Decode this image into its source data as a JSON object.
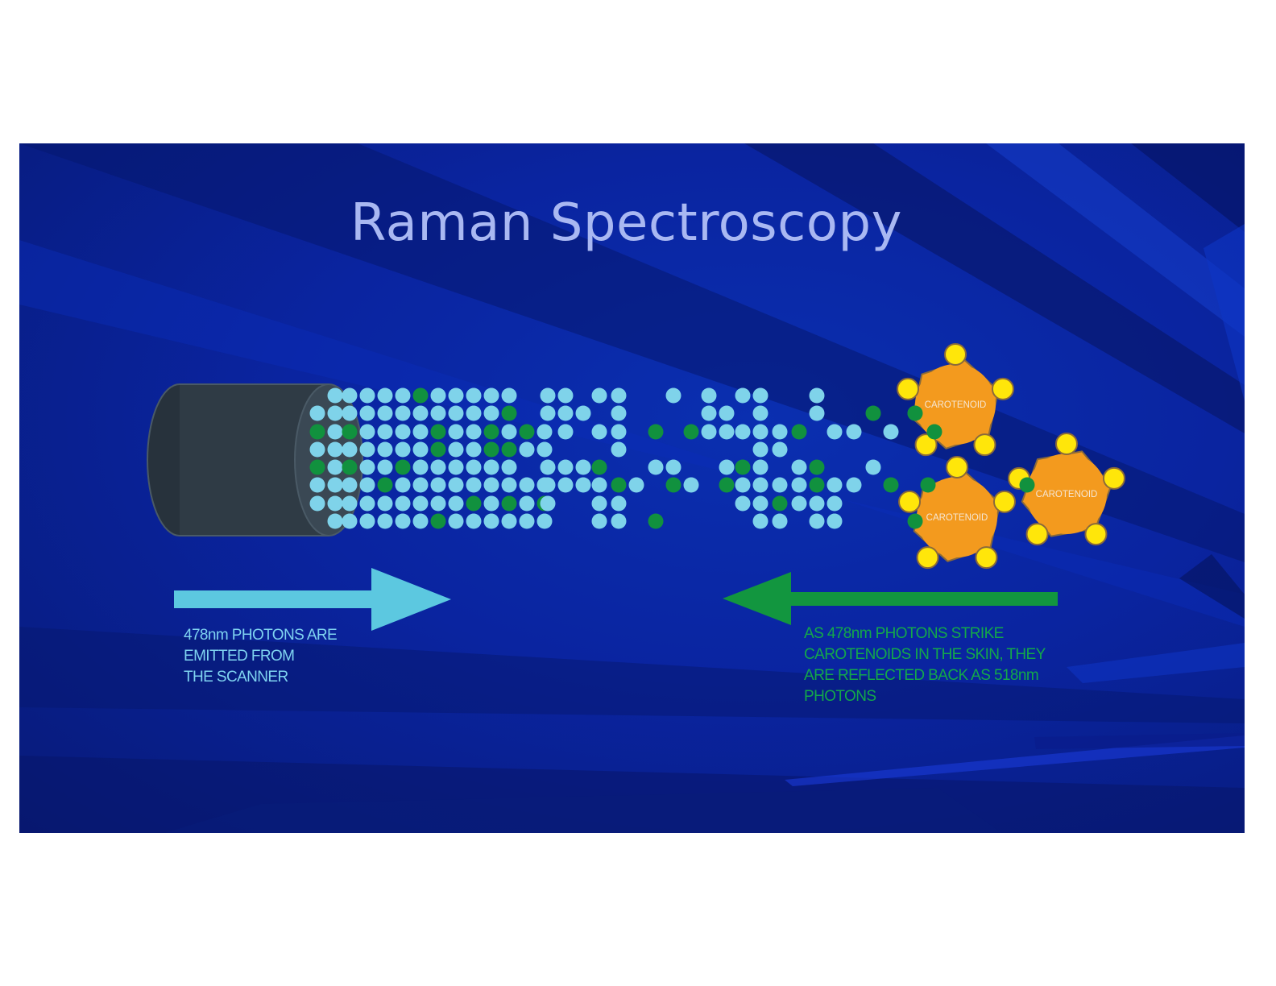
{
  "title": "Raman Spectroscopy",
  "molecules": {
    "label": "CAROTENOID",
    "count": 3
  },
  "captions": {
    "emitted": [
      "478nm PHOTONS ARE",
      "EMITTED FROM",
      "THE SCANNER"
    ],
    "reflected": [
      "AS 478nm PHOTONS STRIKE",
      "CAROTENOIDS IN THE SKIN,  THEY",
      "ARE REFLECTED BACK  AS 518nm",
      "PHOTONS"
    ]
  },
  "colors": {
    "slide_background": "#0a24a0",
    "title": "#a9b8f2",
    "photon_478nm": "#7fd3ea",
    "photon_518nm": "#11913e",
    "arrow_emitted": "#5cc8e0",
    "arrow_reflected": "#12963f",
    "carotenoid_core": "#f39a1e",
    "carotenoid_atom": "#ffe60a",
    "scanner": "#2f3b45"
  }
}
